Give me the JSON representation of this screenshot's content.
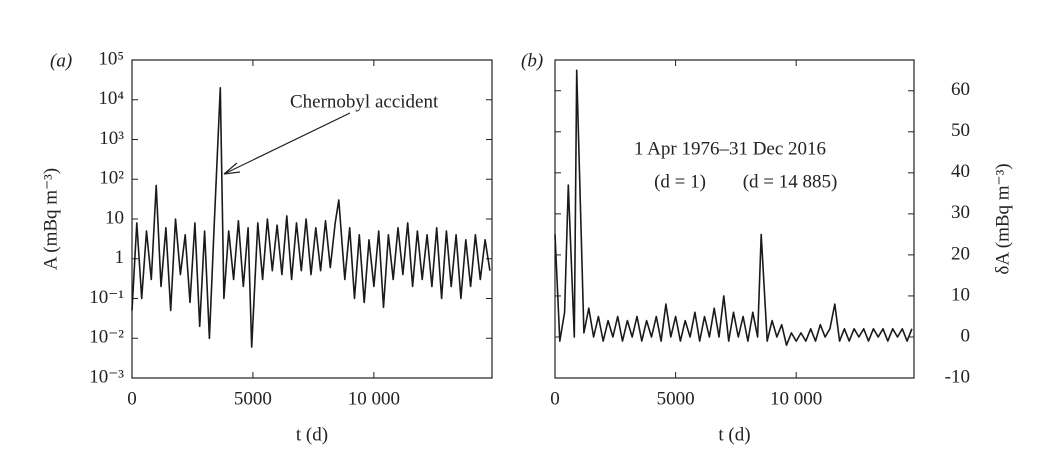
{
  "chart_data": [
    {
      "type": "line",
      "panel_label": "(a)",
      "xlabel": "t (d)",
      "ylabel": "A (mBq m⁻³)",
      "log_y": true,
      "xlim": [
        0,
        14885
      ],
      "xticks": [
        0,
        5000,
        {
          "value": 10000,
          "label": "10 000"
        }
      ],
      "ylim": [
        0.001,
        100000
      ],
      "yticks": [
        {
          "value": 0.001,
          "label": "10⁻³"
        },
        {
          "value": 0.01,
          "label": "10⁻²"
        },
        {
          "value": 0.1,
          "label": "10⁻¹"
        },
        1,
        10,
        {
          "value": 100,
          "label": "10²"
        },
        {
          "value": 1000,
          "label": "10³"
        },
        {
          "value": 10000,
          "label": "10⁴"
        },
        {
          "value": 100000,
          "label": "10⁵"
        }
      ],
      "annotations": [
        "Chernobyl accident"
      ],
      "series": [
        {
          "color": "#1a1a1a",
          "x": [
            0,
            200,
            400,
            600,
            800,
            1000,
            1200,
            1400,
            1600,
            1800,
            2000,
            2200,
            2400,
            2600,
            2800,
            3000,
            3200,
            3400,
            3650,
            3800,
            4000,
            4200,
            4400,
            4600,
            4800,
            4950,
            5200,
            5400,
            5600,
            5800,
            6000,
            6200,
            6400,
            6600,
            6800,
            7000,
            7200,
            7400,
            7600,
            7800,
            8000,
            8200,
            8400,
            8550,
            8800,
            9000,
            9200,
            9400,
            9600,
            9800,
            10000,
            10200,
            10400,
            10600,
            10800,
            11000,
            11200,
            11400,
            11600,
            11800,
            12000,
            12200,
            12400,
            12600,
            12800,
            13000,
            13200,
            13400,
            13600,
            13800,
            14000,
            14200,
            14400,
            14600,
            14800
          ],
          "values": [
            0.05,
            8,
            0.1,
            5,
            0.3,
            70,
            0.2,
            6,
            0.05,
            10,
            0.4,
            4,
            0.08,
            8,
            0.02,
            5,
            0.01,
            7,
            20000,
            0.1,
            5,
            0.3,
            9,
            0.2,
            6,
            0.006,
            8,
            0.3,
            10,
            0.5,
            7,
            0.4,
            12,
            0.3,
            8,
            0.5,
            10,
            0.4,
            6,
            0.5,
            9,
            0.6,
            8,
            30,
            0.3,
            6,
            0.1,
            4,
            0.08,
            3,
            0.2,
            5,
            0.06,
            4,
            0.3,
            6,
            0.4,
            8,
            0.2,
            5,
            0.3,
            4,
            0.2,
            6,
            0.1,
            5,
            0.2,
            4,
            0.1,
            3,
            0.2,
            4,
            0.3,
            3,
            0.5
          ]
        }
      ]
    },
    {
      "type": "line",
      "panel_label": "(b)",
      "xlabel": "t (d)",
      "ylabel": "δA (mBq m⁻³)",
      "log_y": false,
      "y_axis_side": "right",
      "xlim": [
        0,
        14885
      ],
      "xticks": [
        0,
        5000,
        {
          "value": 10000,
          "label": "10 000"
        }
      ],
      "ylim": [
        -10,
        67.5
      ],
      "yticks": [
        -10,
        0,
        10,
        20,
        30,
        40,
        50,
        60
      ],
      "annotations": [
        "1 Apr 1976–31 Dec 2016",
        "(d = 1)",
        "(d = 14 885)"
      ],
      "series": [
        {
          "color": "#1a1a1a",
          "x": [
            0,
            200,
            400,
            550,
            800,
            900,
            1200,
            1400,
            1600,
            1800,
            2000,
            2200,
            2400,
            2600,
            2800,
            3000,
            3200,
            3400,
            3600,
            3800,
            4000,
            4200,
            4400,
            4600,
            4800,
            5000,
            5200,
            5400,
            5600,
            5800,
            6000,
            6200,
            6400,
            6600,
            6800,
            7000,
            7200,
            7400,
            7600,
            7800,
            8000,
            8200,
            8400,
            8550,
            8800,
            9000,
            9200,
            9400,
            9600,
            9800,
            10000,
            10200,
            10400,
            10600,
            10800,
            11000,
            11200,
            11400,
            11600,
            11800,
            12000,
            12200,
            12400,
            12600,
            12800,
            13000,
            13200,
            13400,
            13600,
            13800,
            14000,
            14200,
            14400,
            14600,
            14800
          ],
          "values": [
            25,
            -1,
            6,
            37,
            0,
            65,
            1,
            7,
            0,
            5,
            -1,
            4,
            0,
            5,
            -1,
            4,
            0,
            5,
            -1,
            4,
            0,
            5,
            -1,
            8,
            0,
            5,
            -1,
            4,
            0,
            6,
            -1,
            5,
            0,
            7,
            0,
            10,
            -1,
            6,
            0,
            5,
            -1,
            6,
            0,
            25,
            -1,
            4,
            0,
            3,
            -2,
            1,
            -1,
            1,
            -1,
            2,
            -1,
            3,
            0,
            2,
            8,
            -1,
            2,
            -1,
            2,
            0,
            2,
            -1,
            2,
            0,
            2,
            -1,
            2,
            0,
            2,
            -1,
            2
          ]
        }
      ]
    }
  ]
}
